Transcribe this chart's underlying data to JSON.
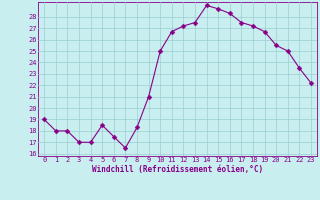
{
  "x": [
    0,
    1,
    2,
    3,
    4,
    5,
    6,
    7,
    8,
    9,
    10,
    11,
    12,
    13,
    14,
    15,
    16,
    17,
    18,
    19,
    20,
    21,
    22,
    23
  ],
  "y": [
    19,
    18,
    18,
    17,
    17,
    18.5,
    17.5,
    16.5,
    18.3,
    21,
    25,
    26.7,
    27.2,
    27.5,
    29,
    28.7,
    28.3,
    27.5,
    27.2,
    26.7,
    25.5,
    25,
    23.5,
    22.2
  ],
  "line_color": "#880088",
  "marker": "D",
  "marker_size": 2.5,
  "bg_color": "#c8eef0",
  "grid_color": "#9acece",
  "xlabel": "Windchill (Refroidissement éolien,°C)",
  "xlabel_color": "#880088",
  "tick_color": "#880088",
  "spine_color": "#880088",
  "ylim_min": 16,
  "ylim_max": 29,
  "xlim_min": -0.5,
  "xlim_max": 23.5,
  "yticks": [
    16,
    17,
    18,
    19,
    20,
    21,
    22,
    23,
    24,
    25,
    26,
    27,
    28
  ],
  "xticks": [
    0,
    1,
    2,
    3,
    4,
    5,
    6,
    7,
    8,
    9,
    10,
    11,
    12,
    13,
    14,
    15,
    16,
    17,
    18,
    19,
    20,
    21,
    22,
    23
  ],
  "tick_fontsize": 5,
  "xlabel_fontsize": 5.5,
  "xlabel_fontweight": "bold",
  "linewidth": 0.8
}
